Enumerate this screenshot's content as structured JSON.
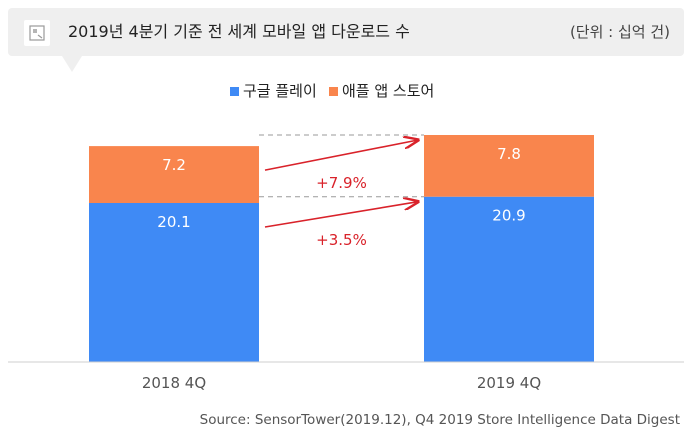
{
  "header": {
    "title": "2019년 4분기 기준 전 세계 모바일 앱 다운로드 수",
    "unit": "(단위 : 십억 건)",
    "logo_icon": "logo-icon"
  },
  "source": "Source: SensorTower(2019.12), Q4 2019 Store Intelligence Data Digest",
  "colors": {
    "google_play": "#3f8af5",
    "app_store": "#f9854d",
    "arrow": "#d9222a"
  },
  "chart_data": {
    "type": "bar",
    "stacked": true,
    "categories": [
      "2018 4Q",
      "2019 4Q"
    ],
    "series": [
      {
        "name": "구글 플레이",
        "values": [
          20.1,
          20.9
        ],
        "labels": [
          "20.1",
          "20.9"
        ]
      },
      {
        "name": "애플 앱 스토어",
        "values": [
          7.2,
          7.8
        ],
        "labels": [
          "7.2",
          "7.8"
        ]
      }
    ],
    "ylim": [
      0,
      28.7
    ],
    "legend_position": "top-center",
    "growth_annotations": [
      {
        "series": "애플 앱 스토어",
        "label": "+7.9%"
      },
      {
        "series": "구글 플레이",
        "label": "+3.5%"
      }
    ]
  }
}
